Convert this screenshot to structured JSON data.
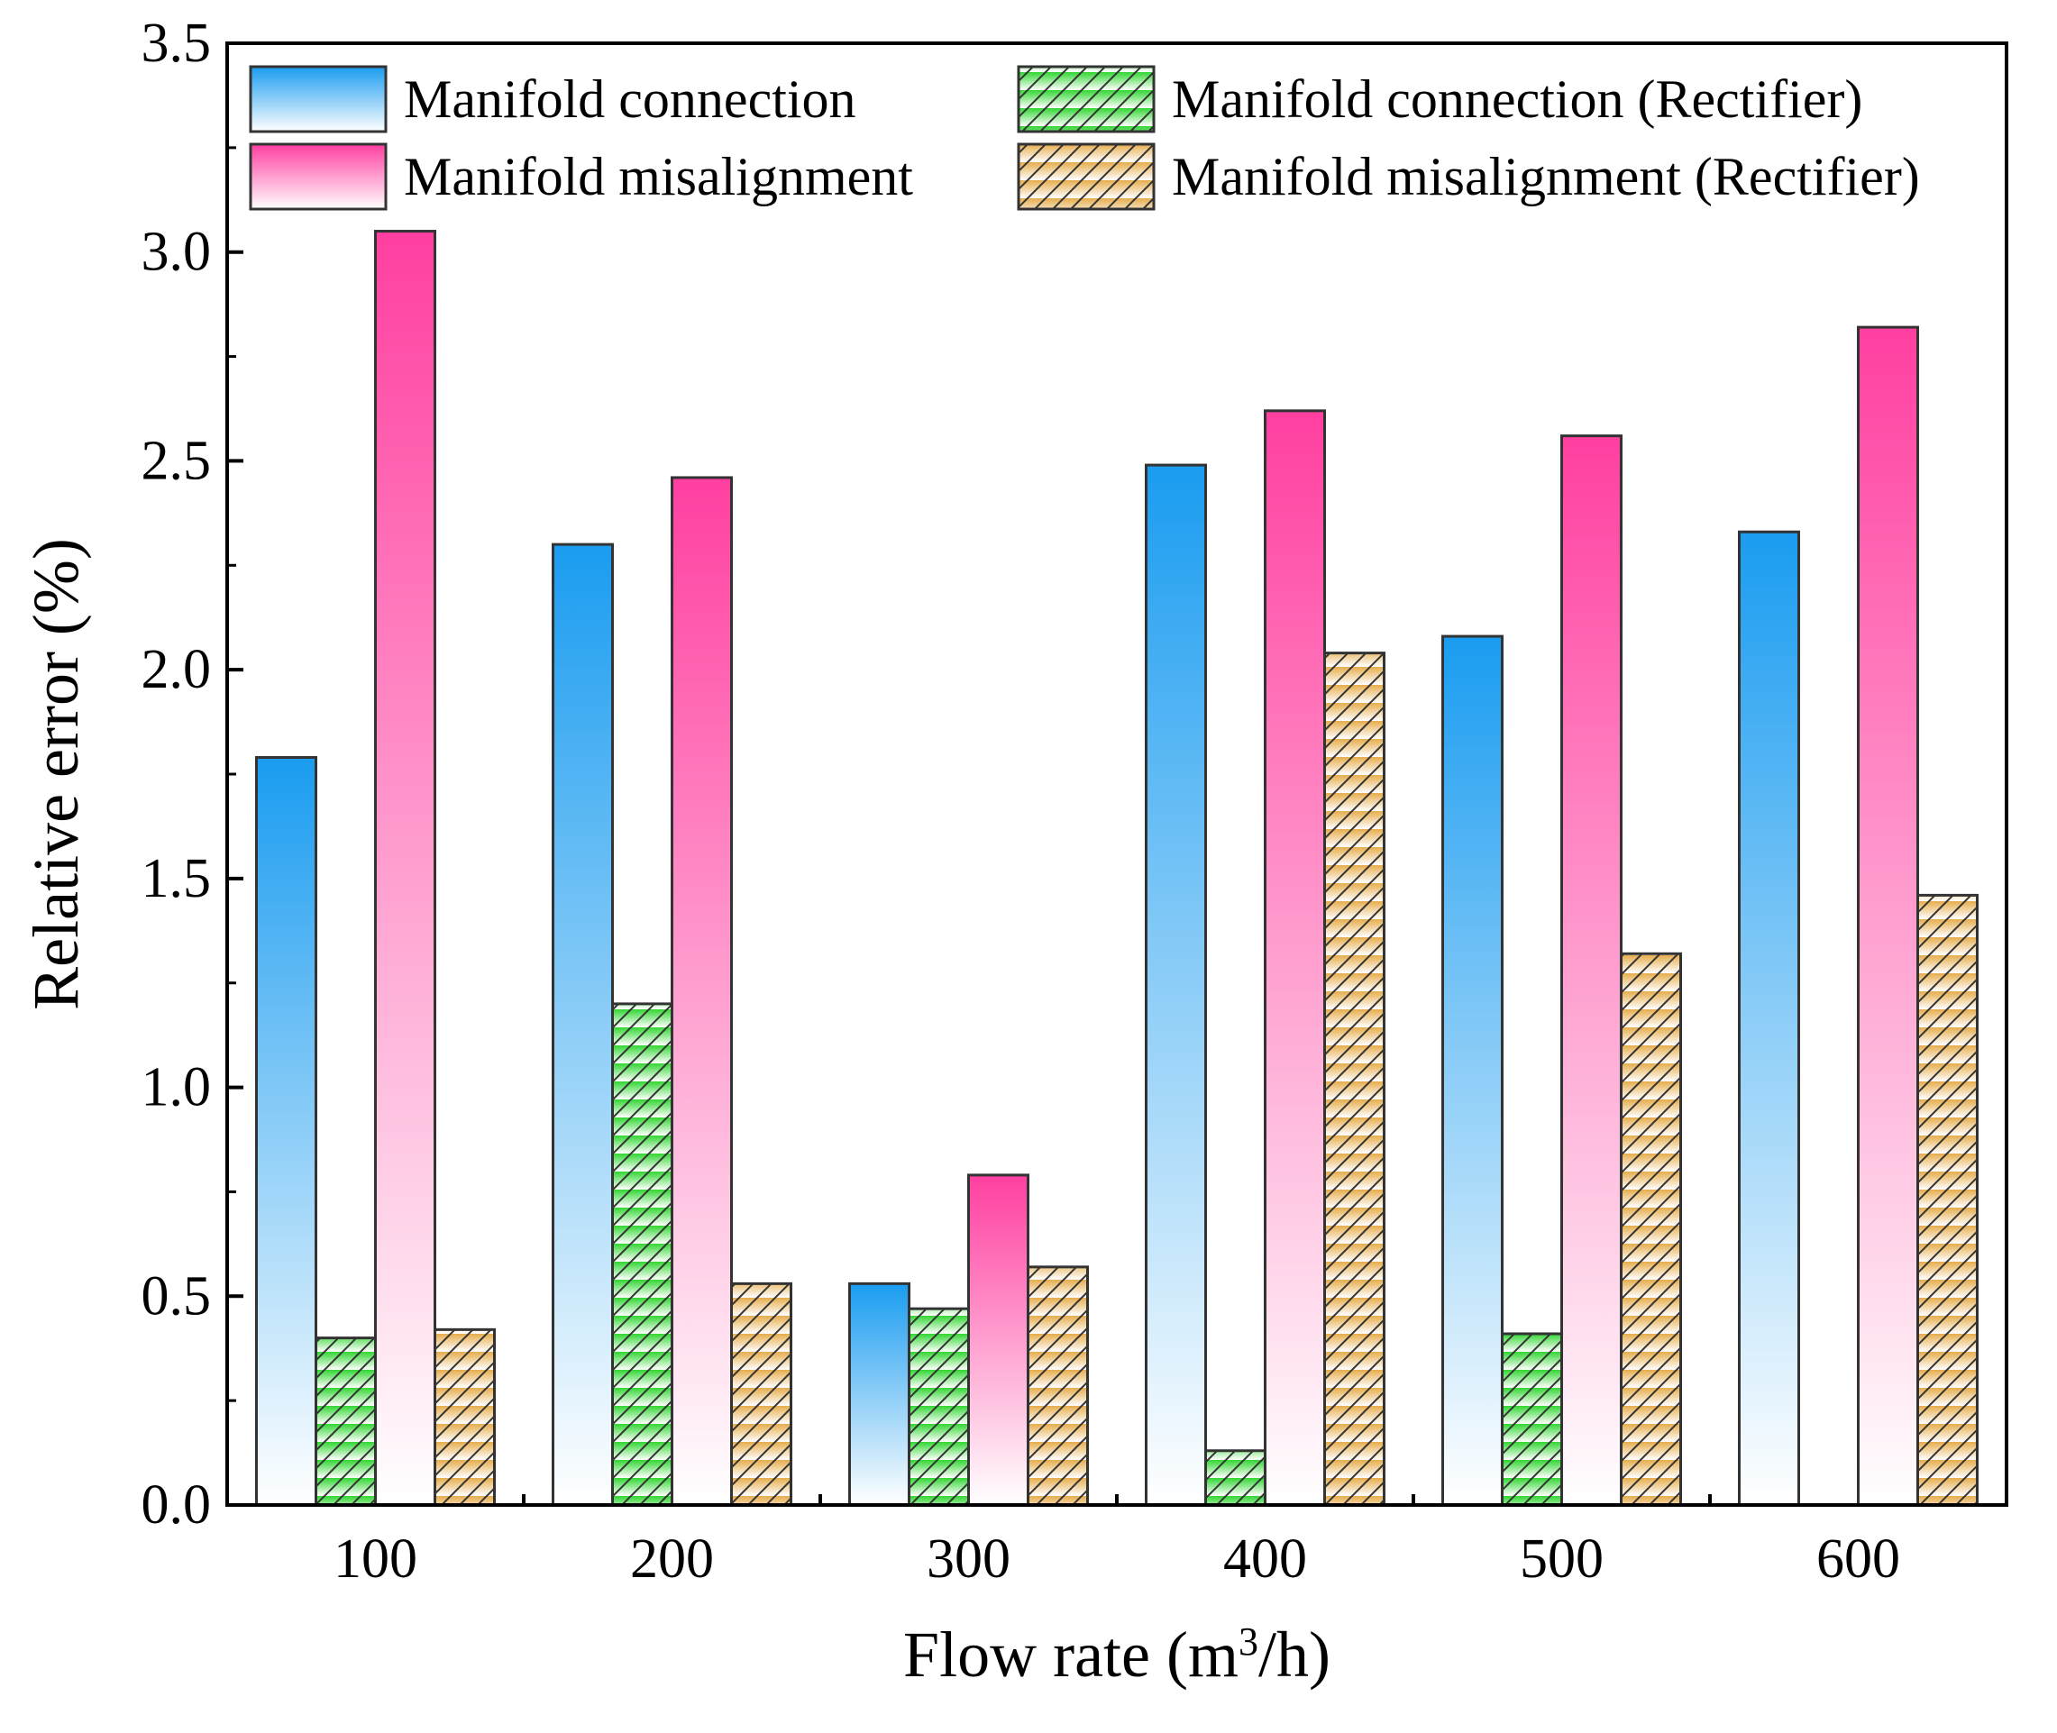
{
  "chart_data": {
    "type": "bar",
    "title": "",
    "xlabel": "Flow rate (m",
    "xlabel_sup": "3",
    "xlabel_suffix": "/h)",
    "ylabel": "Relative error (%)",
    "ylim": [
      0,
      3.5
    ],
    "yticks": [
      "0.0",
      "0.5",
      "1.0",
      "1.5",
      "2.0",
      "2.5",
      "3.0",
      "3.5"
    ],
    "yticks_values": [
      0,
      0.5,
      1.0,
      1.5,
      2.0,
      2.5,
      3.0,
      3.5
    ],
    "categories": [
      "100",
      "200",
      "300",
      "400",
      "500",
      "600"
    ],
    "legend_position": "top",
    "series": [
      {
        "name": "Manifold connection",
        "color": "#1a9cf0",
        "pattern": "gradient",
        "values": [
          1.79,
          2.3,
          0.53,
          2.49,
          2.08,
          2.33
        ]
      },
      {
        "name": "Manifold connection (Rectifier)",
        "color": "#33d633",
        "pattern": "hatched",
        "values": [
          0.4,
          1.2,
          0.47,
          0.13,
          0.41,
          0.0
        ]
      },
      {
        "name": "Manifold misalignment",
        "color": "#ff3fa0",
        "pattern": "gradient",
        "values": [
          3.05,
          2.46,
          0.79,
          2.62,
          2.56,
          2.82
        ]
      },
      {
        "name": "Manifold misalignment (Rectifier)",
        "color": "#e6ad4d",
        "pattern": "hatched",
        "values": [
          0.42,
          0.53,
          0.57,
          2.04,
          1.32,
          1.46
        ]
      }
    ]
  }
}
